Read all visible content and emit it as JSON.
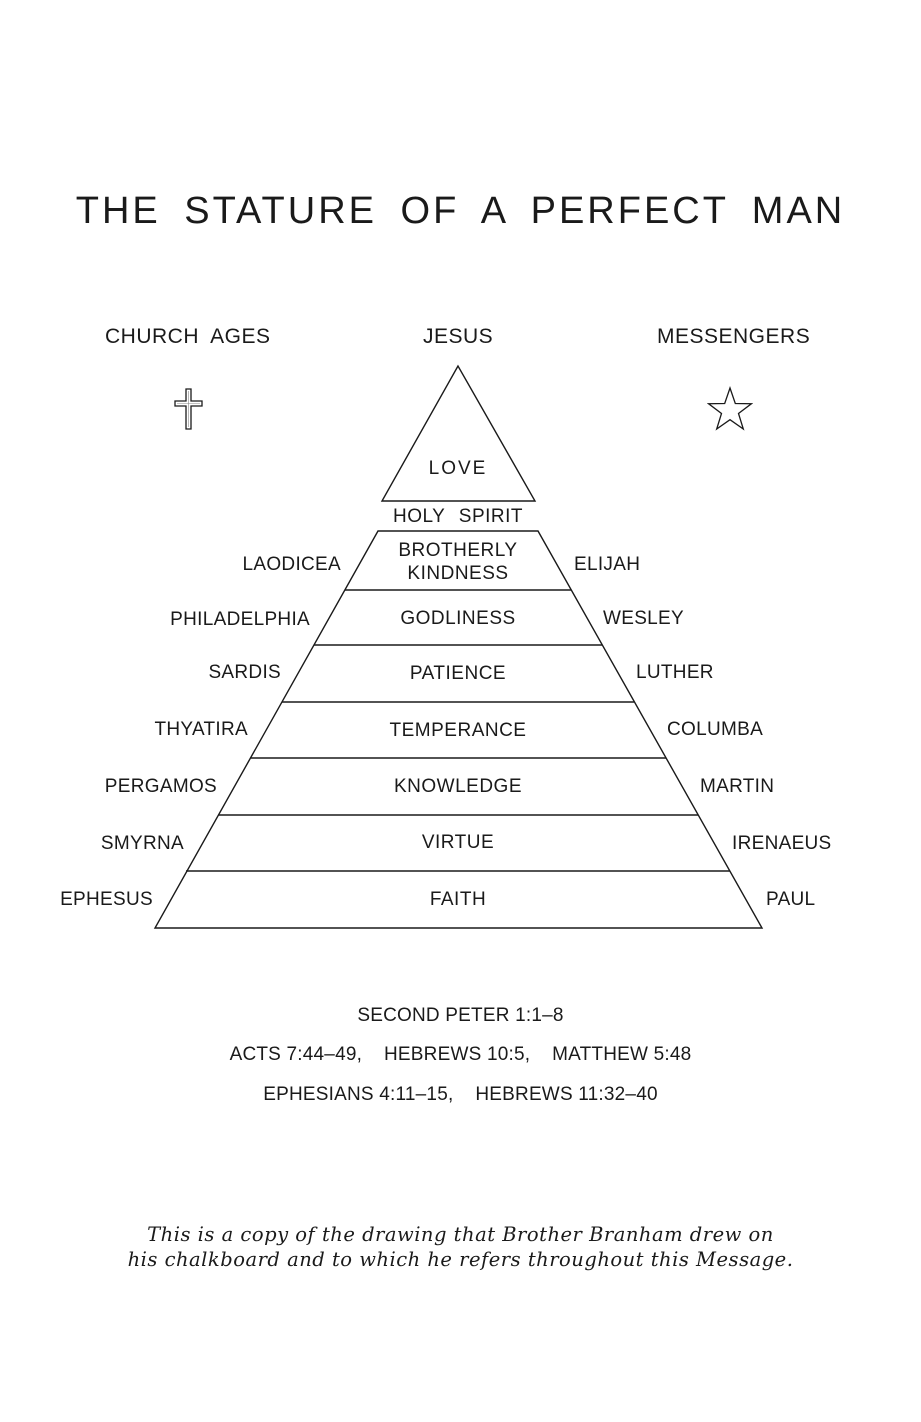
{
  "title": "THE STATURE OF A PERFECT MAN",
  "headers": {
    "left": "CHURCH AGES",
    "center": "JESUS",
    "right": "MESSENGERS"
  },
  "icons": {
    "left": "cross-icon",
    "right": "star-icon"
  },
  "apex": {
    "label": "LOVE"
  },
  "holy_spirit": "HOLY SPIRIT",
  "layers": [
    {
      "virtue_line1": "BROTHERLY",
      "virtue_line2": "KINDNESS",
      "church_age": "LAODICEA",
      "messenger": "ELIJAH"
    },
    {
      "virtue": "GODLINESS",
      "church_age": "PHILADELPHIA",
      "messenger": "WESLEY"
    },
    {
      "virtue": "PATIENCE",
      "church_age": "SARDIS",
      "messenger": "LUTHER"
    },
    {
      "virtue": "TEMPERANCE",
      "church_age": "THYATIRA",
      "messenger": "COLUMBA"
    },
    {
      "virtue": "KNOWLEDGE",
      "church_age": "PERGAMOS",
      "messenger": "MARTIN"
    },
    {
      "virtue": "VIRTUE",
      "church_age": "SMYRNA",
      "messenger": "IRENAEUS"
    },
    {
      "virtue": "FAITH",
      "church_age": "EPHESUS",
      "messenger": "PAUL"
    }
  ],
  "scriptures": [
    "SECOND PETER 1:1–8",
    "ACTS 7:44–49,    HEBREWS 10:5,    MATTHEW 5:48",
    "EPHESIANS 4:11–15,    HEBREWS 11:32–40"
  ],
  "caption": {
    "line1": "This is a copy of the drawing that Brother Branham drew on",
    "line2": "his chalkboard and to which he refers throughout this Message."
  }
}
